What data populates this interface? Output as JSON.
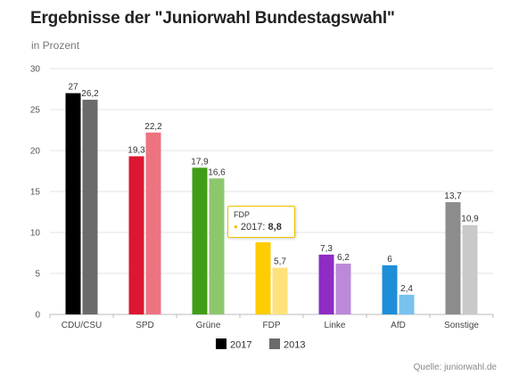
{
  "title": "Ergebnisse der \"Juniorwahl Bundestagswahl\"",
  "subtitle": "in Prozent",
  "source": "Quelle: juniorwahl.de",
  "tooltip": {
    "header": "FDP",
    "series": "2017",
    "value": "8,8"
  },
  "chart_data": {
    "type": "bar",
    "categories": [
      "CDU/CSU",
      "SPD",
      "Grüne",
      "FDP",
      "Linke",
      "AfD",
      "Sonstige"
    ],
    "series": [
      {
        "name": "2017",
        "values": [
          27,
          19.3,
          17.9,
          8.8,
          7.3,
          6,
          13.7
        ],
        "labels": [
          "27",
          "19,3",
          "17,9",
          "",
          "7,3",
          "6",
          "13,7"
        ],
        "colors": [
          "#000000",
          "#dd1632",
          "#3f9e16",
          "#ffcc00",
          "#8e2cc4",
          "#1e8ed8",
          "#8c8c8c"
        ]
      },
      {
        "name": "2013",
        "values": [
          26.2,
          22.2,
          16.6,
          5.7,
          6.2,
          2.4,
          10.9
        ],
        "labels": [
          "26,2",
          "22,2",
          "16,6",
          "5,7",
          "6,2",
          "2,4",
          "10,9"
        ],
        "colors": [
          "#6b6b6b",
          "#ee7380",
          "#8cc76e",
          "#ffe27a",
          "#bb89d8",
          "#79c1ef",
          "#c9c9c9"
        ]
      }
    ],
    "ylim": [
      0,
      30
    ],
    "yticks": [
      "0",
      "5",
      "10",
      "15",
      "20",
      "25",
      "30"
    ],
    "grid": true,
    "legend_position": "bottom-center",
    "legend_colors": [
      "#000000",
      "#6b6b6b"
    ]
  }
}
